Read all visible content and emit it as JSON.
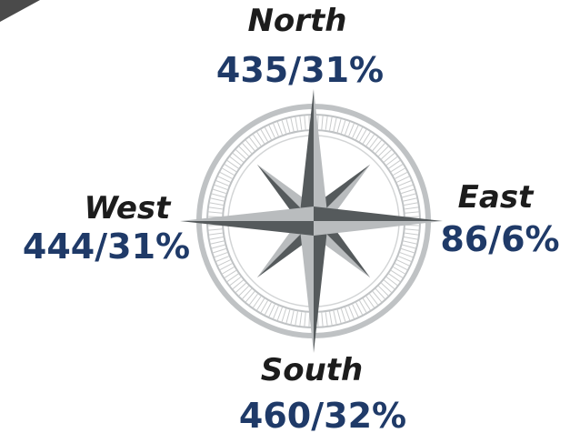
{
  "directions": [
    {
      "label": "North",
      "value": "435/31%"
    },
    {
      "label": "West",
      "value": "444/31%"
    },
    {
      "label": "East",
      "value": "86/6%"
    },
    {
      "label": "South",
      "value": "460/32%"
    }
  ]
}
